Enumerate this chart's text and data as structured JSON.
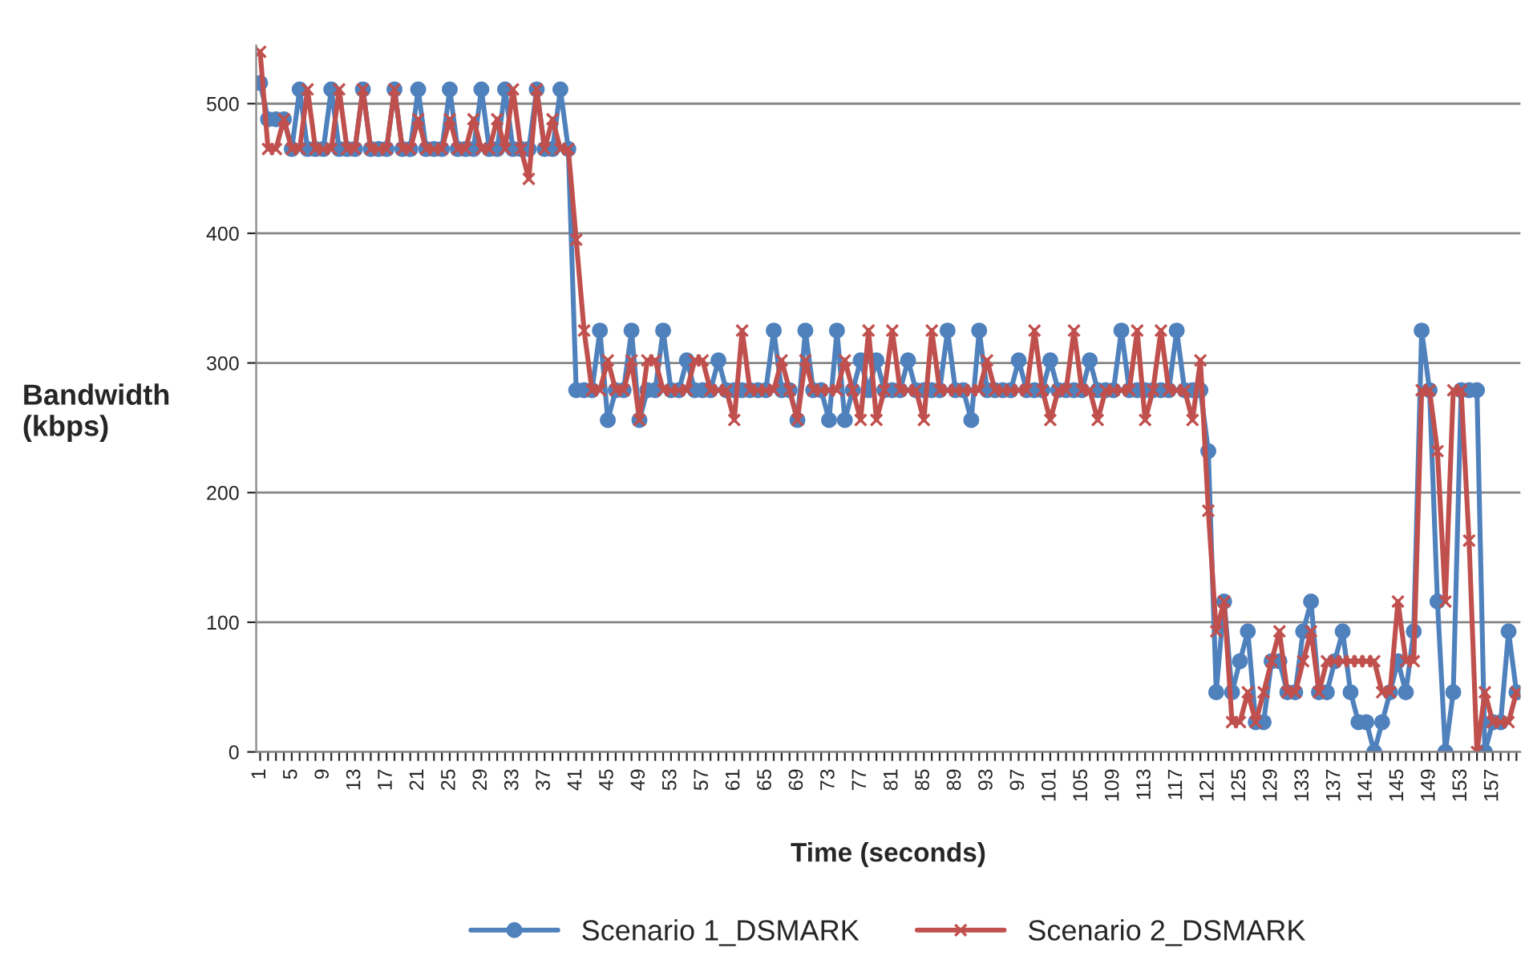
{
  "chart_data": {
    "type": "line",
    "xlabel": "Time (seconds)",
    "ylabel": "Bandwidth\n(kbps)",
    "categories": [
      "1",
      null,
      null,
      null,
      "5",
      null,
      null,
      null,
      "9",
      null,
      null,
      null,
      "13",
      null,
      null,
      null,
      "17",
      null,
      null,
      null,
      "21",
      null,
      null,
      null,
      "25",
      null,
      null,
      null,
      "29",
      null,
      null,
      null,
      "33",
      null,
      null,
      null,
      "37",
      null,
      null,
      null,
      "41",
      null,
      null,
      null,
      "45",
      null,
      null,
      null,
      "49",
      null,
      null,
      null,
      "53",
      null,
      null,
      null,
      "57",
      null,
      null,
      null,
      "61",
      null,
      null,
      null,
      "65",
      null,
      null,
      null,
      "69",
      null,
      null,
      null,
      "73",
      null,
      null,
      null,
      "77",
      null,
      null,
      null,
      "81",
      null,
      null,
      null,
      "85",
      null,
      null,
      null,
      "89",
      null,
      null,
      null,
      "93",
      null,
      null,
      null,
      "97",
      null,
      null,
      null,
      "101",
      null,
      null,
      null,
      "105",
      null,
      null,
      null,
      "109",
      null,
      null,
      null,
      "113",
      null,
      null,
      null,
      "117",
      null,
      null,
      null,
      "121",
      null,
      null,
      null,
      "125",
      null,
      null,
      null,
      "129",
      null,
      null,
      null,
      "133",
      null,
      null,
      null,
      "137",
      null,
      null,
      null,
      "141",
      null,
      null,
      null,
      "145",
      null,
      null,
      null,
      "149",
      null,
      null,
      null,
      "153",
      null,
      null,
      null,
      "157",
      null,
      null,
      null
    ],
    "series": [
      {
        "name": "Scenario 1_DSMARK",
        "color": "#4f81bd",
        "marker": "circle",
        "values": [
          516,
          488,
          488,
          488,
          465,
          511,
          465,
          465,
          465,
          511,
          465,
          465,
          465,
          511,
          465,
          465,
          465,
          511,
          465,
          465,
          511,
          465,
          465,
          465,
          511,
          465,
          465,
          465,
          511,
          465,
          465,
          511,
          465,
          465,
          465,
          511,
          465,
          465,
          511,
          465,
          279,
          279,
          279,
          325,
          256,
          279,
          279,
          325,
          256,
          279,
          279,
          325,
          279,
          279,
          302,
          279,
          279,
          279,
          302,
          279,
          279,
          279,
          279,
          279,
          279,
          325,
          279,
          279,
          256,
          325,
          279,
          279,
          256,
          325,
          256,
          279,
          302,
          279,
          302,
          279,
          279,
          279,
          302,
          279,
          279,
          279,
          279,
          325,
          279,
          279,
          256,
          325,
          279,
          279,
          279,
          279,
          302,
          279,
          279,
          279,
          302,
          279,
          279,
          279,
          279,
          302,
          279,
          279,
          279,
          325,
          279,
          279,
          279,
          279,
          279,
          279,
          325,
          279,
          279,
          279,
          232,
          46,
          116,
          46,
          70,
          93,
          23,
          23,
          70,
          70,
          46,
          46,
          93,
          116,
          46,
          46,
          70,
          93,
          46,
          23,
          23,
          0,
          23,
          46,
          70,
          46,
          93,
          325,
          279,
          116,
          0,
          46,
          279,
          279,
          279,
          0,
          23,
          23,
          93,
          46
        ]
      },
      {
        "name": "Scenario 2_DSMARK",
        "color": "#c0504d",
        "marker": "cross",
        "values": [
          540,
          465,
          465,
          488,
          465,
          465,
          511,
          465,
          465,
          465,
          511,
          465,
          465,
          511,
          465,
          465,
          465,
          511,
          465,
          465,
          488,
          465,
          465,
          465,
          488,
          465,
          465,
          488,
          465,
          465,
          488,
          465,
          511,
          465,
          442,
          511,
          465,
          488,
          465,
          465,
          395,
          325,
          279,
          279,
          302,
          279,
          279,
          302,
          256,
          302,
          302,
          279,
          279,
          279,
          279,
          302,
          302,
          279,
          279,
          279,
          256,
          325,
          279,
          279,
          279,
          279,
          302,
          279,
          256,
          302,
          279,
          279,
          279,
          279,
          302,
          279,
          256,
          325,
          256,
          279,
          325,
          279,
          279,
          279,
          256,
          325,
          279,
          279,
          279,
          279,
          279,
          279,
          302,
          279,
          279,
          279,
          279,
          279,
          325,
          279,
          256,
          279,
          279,
          325,
          279,
          279,
          256,
          279,
          279,
          279,
          279,
          325,
          256,
          279,
          325,
          279,
          279,
          279,
          256,
          302,
          186,
          93,
          116,
          23,
          23,
          46,
          23,
          46,
          70,
          93,
          46,
          46,
          70,
          93,
          46,
          70,
          70,
          70,
          70,
          70,
          70,
          70,
          46,
          46,
          116,
          70,
          70,
          279,
          279,
          232,
          116,
          279,
          279,
          163,
          0,
          46,
          23,
          23,
          23,
          46
        ]
      }
    ],
    "ylim": [
      0,
      545
    ],
    "yticks": [
      0,
      100,
      200,
      300,
      400,
      500
    ],
    "grid": "y",
    "legend": "bottom",
    "line_style": "solid"
  }
}
